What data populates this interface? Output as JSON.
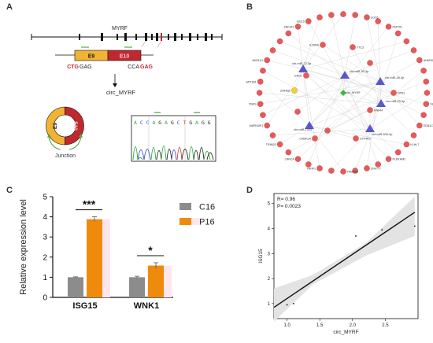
{
  "panel_labels": {
    "a": "A",
    "b": "B",
    "c": "C",
    "d": "D"
  },
  "panel_a": {
    "gene": "MYRF",
    "exon_left": "E9",
    "exon_right": "E10",
    "seq_left_red": "CTG",
    "seq_left_black": "GAG",
    "seq_right_black": "CCA",
    "seq_right_red": "GAG",
    "product": "circ_MYRF",
    "circle_left": "E9",
    "circle_right": "E10",
    "junction": "Junction",
    "sanger_bases": [
      "A",
      "C",
      "C",
      "A",
      "G",
      "A",
      "G",
      "C",
      "T",
      "G",
      "A",
      "G",
      "G"
    ],
    "colors": {
      "exon9": "#f2b233",
      "exon10": "#c0282f",
      "arrow_green": "#58a84a"
    }
  },
  "panel_b": {
    "center_node": "circ_MYRF",
    "mirna_nodes": [
      "chr-miR-22-3p",
      "chr-miR-30-3p",
      "chr-miR-28-3p",
      "chr-miR-23-5p",
      "chr-miR-1343",
      "chr-miR-505-3p"
    ],
    "target_nodes": [
      "ZNF441",
      "ISG15",
      "SLC9A2",
      "EDN1C",
      "KLHL7",
      "PLEKHM2",
      "ZNF777",
      "FAM83A",
      "NRIP1",
      "LRRC4",
      "TRIM25",
      "MAPK8IP1",
      "TNKS",
      "ATP1B1",
      "AKR1A1",
      "IL20RA",
      "TTC3",
      "ENO1",
      "ZNF652",
      "CAMK2A",
      "CYP4F3",
      "RNF44",
      "NTN1",
      "SOX6",
      "KMT2D",
      "ANKRD5"
    ],
    "colors": {
      "target": "#e55a5a",
      "mirna": "#5b57c9",
      "center": "#3cba3c",
      "highlight": "#f2d61f"
    }
  },
  "chart_data": [
    {
      "type": "bar",
      "categories": [
        "ISG15",
        "WNK1"
      ],
      "series": [
        {
          "name": "C16",
          "values": [
            1.0,
            1.0
          ],
          "errors": [
            0.02,
            0.05
          ],
          "color": "#8c8c8c"
        },
        {
          "name": "P16",
          "values": [
            3.88,
            1.58
          ],
          "errors": [
            0.12,
            0.14
          ],
          "color": "#f08a0c"
        }
      ],
      "significance": [
        "***",
        "*"
      ],
      "ylabel": "Relative expression level",
      "yticks": [
        0,
        1,
        2,
        3,
        4,
        5
      ],
      "ylim": [
        0,
        5
      ],
      "legend": "top-right"
    },
    {
      "type": "scatter",
      "points": [
        [
          1.0,
          0.95
        ],
        [
          1.1,
          1.0
        ],
        [
          2.05,
          3.7
        ],
        [
          2.45,
          3.95
        ],
        [
          2.95,
          4.1
        ]
      ],
      "fit_line": [
        [
          0.8,
          0.85
        ],
        [
          2.95,
          4.65
        ]
      ],
      "annotations": [
        "R= 0.96",
        "P= 0.0023"
      ],
      "xlabel": "circ_MYRF",
      "ylabel": "ISG15",
      "xticks": [
        "1.0",
        "1.5",
        "2.0",
        "2.5"
      ],
      "yticks": [
        "1",
        "2",
        "3",
        "4",
        "5"
      ],
      "xlim": [
        0.8,
        3.0
      ],
      "ylim": [
        0.4,
        5.4
      ]
    }
  ]
}
